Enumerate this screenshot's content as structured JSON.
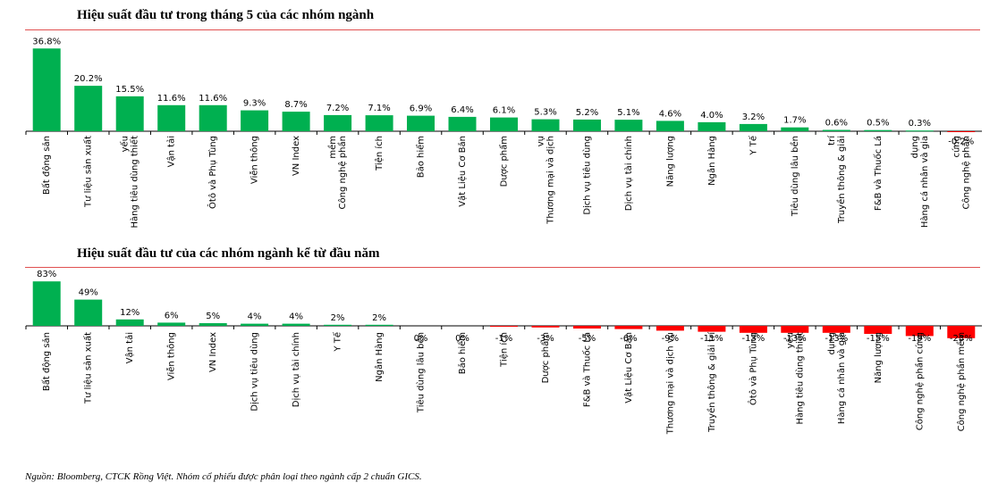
{
  "chart_data": [
    {
      "type": "bar",
      "title": "Hiệu suất đầu tư trong tháng 5 của các nhóm ngành",
      "categories": [
        "Bất động sản",
        "Tư liệu sản xuất",
        "Hàng tiêu dùng thiết yếu",
        "Vận tải",
        "Ôtô và Phụ Tùng",
        "Viễn thông",
        "VN Index",
        "Công nghệ phần mềm",
        "Tiện ích",
        "Bảo hiểm",
        "Vật Liệu Cơ Bản",
        "Dược phẩm",
        "Thương mại và dịch vụ",
        "Dịch vụ tiêu dùng",
        "Dịch vụ tài chính",
        "Năng lượng",
        "Ngân Hàng",
        "Y Tế",
        "Tiêu dùng lâu bền",
        "Truyền thông & giải trí",
        "F&B và Thuốc Lá",
        "Hàng cá nhân và gia dụng",
        "Công nghệ phần cứng"
      ],
      "labels": [
        "Bất động sản",
        "Tư liệu sản xuất",
        "Hàng tiêu dùng thiết|yếu",
        "Vận tải",
        "Ôtô và Phụ Tùng",
        "Viễn thông",
        "VN Index",
        "Công nghệ phần|mềm",
        "Tiện ích",
        "Bảo hiểm",
        "Vật Liệu Cơ Bản",
        "Dược phẩm",
        "Thương mại và dịch|vụ",
        "Dịch vụ tiêu dùng",
        "Dịch vụ tài chính",
        "Năng lượng",
        "Ngân Hàng",
        "Y Tế",
        "Tiêu dùng lâu bền",
        "Truyền thông & giải|trí",
        "F&B và Thuốc Lá",
        "Hàng cá nhân và gia|dụng",
        "Công nghệ phần|cứng"
      ],
      "values": [
        36.8,
        20.2,
        15.5,
        11.6,
        11.6,
        9.3,
        8.7,
        7.2,
        7.1,
        6.9,
        6.4,
        6.1,
        5.3,
        5.2,
        5.1,
        4.6,
        4.0,
        3.2,
        1.7,
        0.6,
        0.5,
        0.3,
        -0.2
      ],
      "value_labels": [
        "36.8%",
        "20.2%",
        "15.5%",
        "11.6%",
        "11.6%",
        "9.3%",
        "8.7%",
        "7.2%",
        "7.1%",
        "6.9%",
        "6.4%",
        "6.1%",
        "5.3%",
        "5.2%",
        "5.1%",
        "4.6%",
        "4.0%",
        "3.2%",
        "1.7%",
        "0.6%",
        "0.5%",
        "0.3%",
        "-0.2%"
      ],
      "unit": "%",
      "positive_color": "#00b050",
      "negative_color": "#ff0000"
    },
    {
      "type": "bar",
      "title": "Hiệu suất đầu tư của các nhóm ngành kể từ đầu năm",
      "categories": [
        "Bất động sản",
        "Tư liệu sản xuất",
        "Vận tải",
        "Viễn thông",
        "VN Index",
        "Dịch vụ tiêu dùng",
        "Dịch vụ tài chính",
        "Y Tế",
        "Ngân Hàng",
        "Tiêu dùng lâu bền",
        "Bảo hiểm",
        "Tiện ích",
        "Dược phẩm",
        "F&B và Thuốc Lá",
        "Vật Liệu Cơ Bản",
        "Thương mại và dịch vụ",
        "Truyền thông & giải trí",
        "Ôtô và Phụ Tùng",
        "Hàng tiêu dùng thiết yếu",
        "Hàng cá nhân và gia dụng",
        "Năng lượng",
        "Công nghệ phần cứng",
        "Công nghệ phần mềm"
      ],
      "labels": [
        "Bất động sản",
        "Tư liệu sản xuất",
        "Vận tải",
        "Viễn thông",
        "VN Index",
        "Dịch vụ tiêu dùng",
        "Dịch vụ tài chính",
        "Y Tế",
        "Ngân Hàng",
        "Tiêu dùng lâu bền",
        "Bảo hiểm",
        "Tiện ích",
        "Dược phẩm",
        "F&B và Thuốc Lá",
        "Vật Liệu Cơ Bản",
        "Thương mại và dịch vụ",
        "Truyền thông & giải trí",
        "Ôtô và Phụ Tùng",
        "Hàng tiêu dùng thiết|yếu",
        "Hàng cá nhân và gia|dụng",
        "Năng lượng",
        "Công nghệ phần cứng",
        "Công nghệ phần mềm"
      ],
      "values": [
        83,
        49,
        12,
        6,
        5,
        4,
        4,
        2,
        2,
        0,
        0,
        -1,
        -3,
        -5,
        -6,
        -9,
        -11,
        -13,
        -13,
        -13,
        -15,
        -19,
        -23
      ],
      "value_labels": [
        "83%",
        "49%",
        "12%",
        "6%",
        "5%",
        "4%",
        "4%",
        "2%",
        "2%",
        "0%",
        "0%",
        "-1%",
        "-3%",
        "-5%",
        "-6%",
        "-9%",
        "-11%",
        "-13%",
        "-13%",
        "-13%",
        "-15%",
        "-19%",
        "-23%"
      ],
      "unit": "%",
      "positive_color": "#00b050",
      "negative_color": "#ff0000"
    }
  ],
  "source_note": "Nguồn: Bloomberg, CTCK Rồng Việt. Nhóm cổ phiếu được phân loại theo ngành cấp 2 chuẩn GICS."
}
